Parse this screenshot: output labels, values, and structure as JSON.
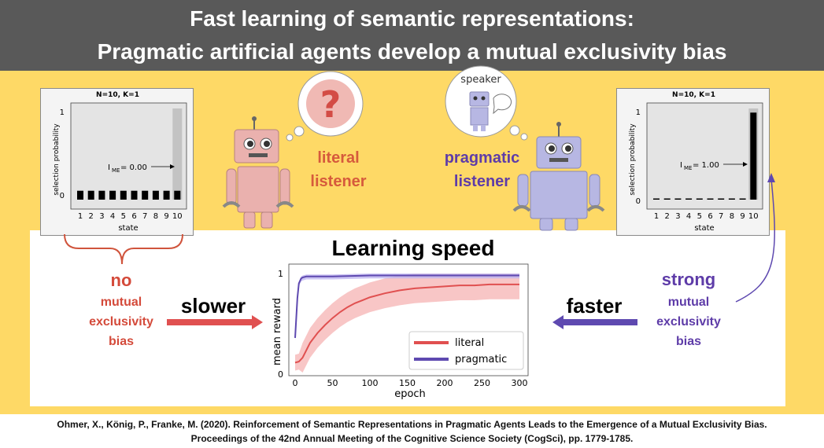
{
  "header": {
    "title_line1": "Fast learning of semantic representations:",
    "title_line2": "Pragmatic artificial agents develop a mutual exclusivity bias",
    "bg_color": "#595959"
  },
  "colors": {
    "literal": "#e05050",
    "pragmatic": "#5e49b0",
    "background": "#fed966",
    "literal_robot": "#eab1ae",
    "pragmatic_robot": "#b7b7e3"
  },
  "left_plot": {
    "title": "N=10, K=1",
    "ylabel": "selection probability",
    "xlabel": "state",
    "annotation": "= 0.00",
    "annotation_sub": "ME",
    "annotation_prefix": "I"
  },
  "right_plot": {
    "title": "N=10, K=1",
    "ylabel": "selection probability",
    "xlabel": "state",
    "annotation": "= 1.00",
    "annotation_sub": "ME",
    "annotation_prefix": "I"
  },
  "literal_robot": {
    "bubble_symbol": "?",
    "label_line1": "literal",
    "label_line2": "listener"
  },
  "pragmatic_robot": {
    "bubble_text": "speaker",
    "label_line1": "pragmatic",
    "label_line2": "listener"
  },
  "learning": {
    "title": "Learning speed",
    "left_line1": "no",
    "left_line2": "mutual",
    "left_line3": "exclusivity",
    "left_line4": "bias",
    "left_arrow_label": "slower",
    "right_line1": "strong",
    "right_line2": "mutual",
    "right_line3": "exclusivity",
    "right_line4": "bias",
    "right_arrow_label": "faster"
  },
  "chart_data": [
    {
      "type": "bar",
      "title": "N=10, K=1",
      "xlabel": "state",
      "ylabel": "selection probability",
      "categories": [
        "1",
        "2",
        "3",
        "4",
        "5",
        "6",
        "7",
        "8",
        "9",
        "10"
      ],
      "values": [
        0.1,
        0.1,
        0.1,
        0.1,
        0.1,
        0.1,
        0.1,
        0.1,
        0.1,
        0.1
      ],
      "shade_category": "10",
      "yticks": [
        0,
        1
      ],
      "ylim": [
        0,
        1
      ]
    },
    {
      "type": "bar",
      "title": "N=10, K=1",
      "xlabel": "state",
      "ylabel": "selection probability",
      "categories": [
        "1",
        "2",
        "3",
        "4",
        "5",
        "6",
        "7",
        "8",
        "9",
        "10"
      ],
      "values": [
        0,
        0,
        0,
        0,
        0,
        0,
        0,
        0,
        0.01,
        0.98
      ],
      "shade_category": "10",
      "yticks": [
        0,
        1
      ],
      "ylim": [
        0,
        1
      ]
    },
    {
      "type": "line",
      "xlabel": "epoch",
      "ylabel": "mean reward",
      "xlim": [
        0,
        300
      ],
      "ylim": [
        0,
        1
      ],
      "xticks": [
        0,
        50,
        100,
        150,
        200,
        250,
        300
      ],
      "yticks": [
        0,
        1
      ],
      "series": [
        {
          "name": "literal",
          "color": "#e05050",
          "x": [
            0,
            5,
            10,
            20,
            30,
            40,
            50,
            60,
            70,
            80,
            90,
            100,
            120,
            140,
            160,
            180,
            200,
            220,
            240,
            260,
            280,
            300
          ],
          "y": [
            0.1,
            0.11,
            0.15,
            0.3,
            0.4,
            0.48,
            0.55,
            0.61,
            0.66,
            0.7,
            0.73,
            0.76,
            0.8,
            0.83,
            0.85,
            0.86,
            0.87,
            0.88,
            0.88,
            0.89,
            0.89,
            0.89
          ]
        },
        {
          "name": "pragmatic",
          "color": "#5e49b0",
          "x": [
            0,
            3,
            5,
            8,
            10,
            15,
            20,
            30,
            50,
            100,
            150,
            200,
            250,
            300
          ],
          "y": [
            0.35,
            0.75,
            0.9,
            0.95,
            0.96,
            0.97,
            0.97,
            0.97,
            0.97,
            0.98,
            0.98,
            0.98,
            0.98,
            0.98
          ]
        }
      ]
    }
  ],
  "citation": {
    "line1": "Ohmer, X., König, P., Franke, M. (2020). Reinforcement of Semantic Representations in Pragmatic Agents Leads to the Emergence of a Mutual Exclusivity Bias.",
    "line2": "Proceedings of the 42nd Annual Meeting of the Cognitive Science Society (CogSci), pp. 1779-1785."
  }
}
